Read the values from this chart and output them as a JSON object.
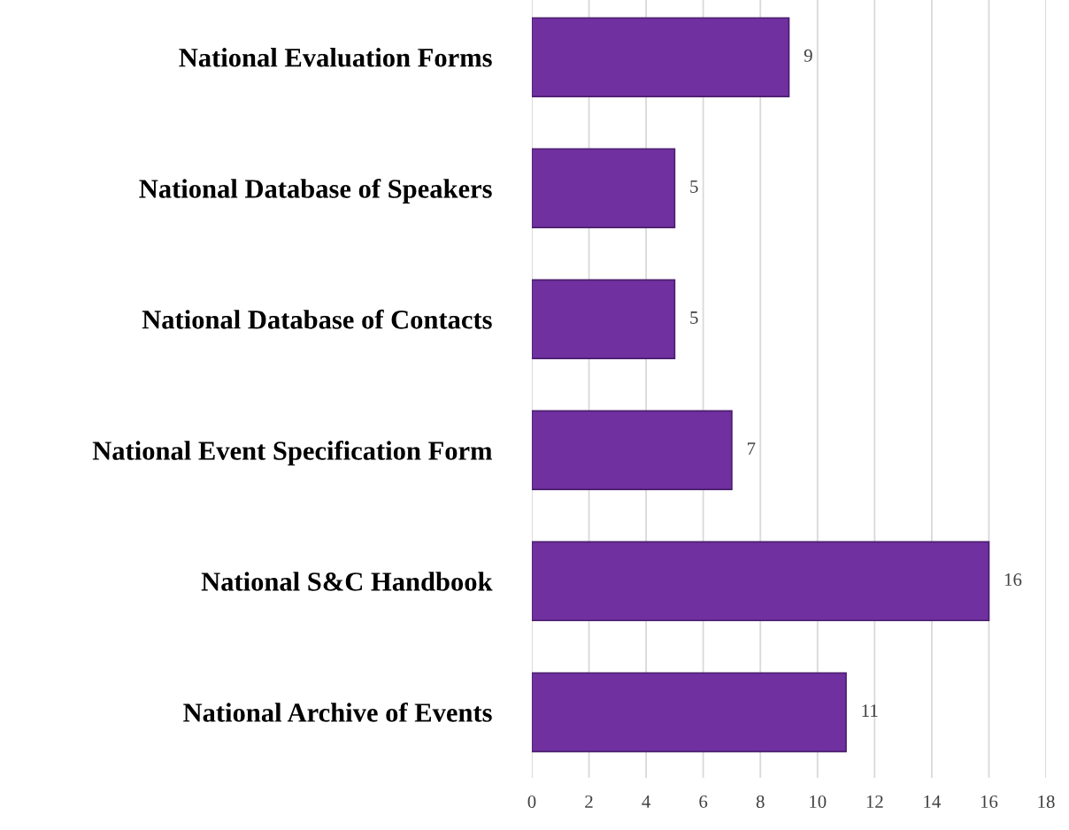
{
  "chart_data": {
    "type": "bar",
    "orientation": "horizontal",
    "categories": [
      "National Evaluation Forms",
      "National Database of Speakers",
      "National Database of Contacts",
      "National Event Specification Form",
      "National S&C Handbook",
      "National Archive of Events"
    ],
    "values": [
      9,
      5,
      5,
      7,
      16,
      11
    ],
    "color": "#7030a0",
    "xlim": [
      0,
      18
    ],
    "xticks": [
      0,
      2,
      4,
      6,
      8,
      10,
      12,
      14,
      16,
      18
    ],
    "grid": "x",
    "data_labels": true
  }
}
